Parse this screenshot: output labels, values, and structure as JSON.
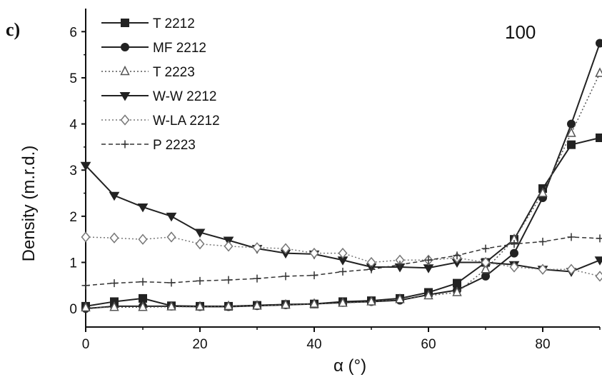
{
  "chart_data": {
    "type": "line",
    "panel_label": "c)",
    "annotation": "100",
    "xlabel": "α (°)",
    "ylabel": "Density (m.r.d.)",
    "xlim": [
      0,
      90
    ],
    "ylim": [
      -0.4,
      6.5
    ],
    "x_ticks": [
      0,
      20,
      40,
      60,
      80
    ],
    "x_tick_labels": [
      "0",
      "20",
      "40",
      "60",
      "80"
    ],
    "y_ticks": [
      0,
      1,
      2,
      3,
      4,
      5,
      6
    ],
    "y_tick_labels": [
      "0",
      "1",
      "2",
      "3",
      "4",
      "5",
      "6"
    ],
    "grid": false,
    "legend_position": "top-left",
    "x": [
      0,
      5,
      10,
      15,
      20,
      25,
      30,
      35,
      40,
      45,
      50,
      55,
      60,
      65,
      70,
      75,
      80,
      85,
      90
    ],
    "series": [
      {
        "name": "T 2212",
        "marker": "square-filled",
        "dash": "solid",
        "color": "#222222",
        "values": [
          0.05,
          0.15,
          0.22,
          0.06,
          0.05,
          0.05,
          0.07,
          0.09,
          0.1,
          0.15,
          0.17,
          0.22,
          0.35,
          0.55,
          1.0,
          1.5,
          2.6,
          3.55,
          3.7
        ]
      },
      {
        "name": "MF 2212",
        "marker": "circle-filled",
        "dash": "solid",
        "color": "#222222",
        "values": [
          0.0,
          0.05,
          0.05,
          0.05,
          0.04,
          0.04,
          0.06,
          0.08,
          0.1,
          0.13,
          0.15,
          0.18,
          0.3,
          0.4,
          0.7,
          1.2,
          2.4,
          4.0,
          5.75
        ]
      },
      {
        "name": "T 2223",
        "marker": "triangle-open",
        "dash": "dotted",
        "color": "#555555",
        "values": [
          0.02,
          0.03,
          0.03,
          0.04,
          0.04,
          0.05,
          0.06,
          0.08,
          0.1,
          0.12,
          0.15,
          0.2,
          0.28,
          0.35,
          0.85,
          1.5,
          2.5,
          3.8,
          5.1
        ]
      },
      {
        "name": "W-W 2212",
        "marker": "triangle-down-filled",
        "dash": "solid",
        "color": "#222222",
        "values": [
          3.1,
          2.45,
          2.2,
          2.0,
          1.65,
          1.48,
          1.3,
          1.2,
          1.18,
          1.05,
          0.9,
          0.9,
          0.88,
          1.0,
          1.0,
          0.95,
          0.85,
          0.8,
          1.05
        ]
      },
      {
        "name": "W-LA 2212",
        "marker": "diamond-open",
        "dash": "dotted",
        "color": "#777777",
        "values": [
          1.55,
          1.53,
          1.5,
          1.55,
          1.4,
          1.35,
          1.32,
          1.3,
          1.2,
          1.2,
          1.0,
          1.05,
          1.05,
          1.1,
          1.0,
          0.9,
          0.85,
          0.85,
          0.7
        ]
      },
      {
        "name": "P 2223",
        "marker": "plus",
        "dash": "dashed",
        "color": "#333333",
        "values": [
          0.5,
          0.55,
          0.58,
          0.56,
          0.6,
          0.62,
          0.65,
          0.7,
          0.72,
          0.8,
          0.85,
          0.95,
          1.05,
          1.15,
          1.3,
          1.4,
          1.45,
          1.55,
          1.52
        ]
      }
    ]
  }
}
